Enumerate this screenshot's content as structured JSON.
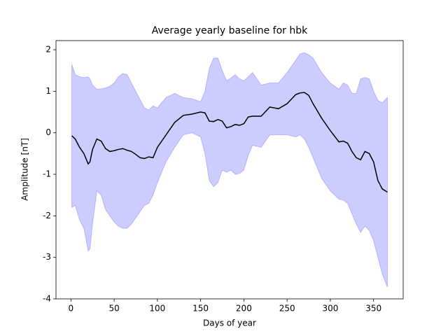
{
  "chart_data": {
    "type": "line_band",
    "title": "Average yearly baseline for hbk",
    "xlabel": "Days of year",
    "ylabel": "Amplitude [nT]",
    "x": [
      1,
      5,
      10,
      15,
      20,
      22,
      25,
      30,
      35,
      40,
      45,
      50,
      55,
      60,
      65,
      70,
      75,
      80,
      85,
      90,
      95,
      100,
      110,
      120,
      130,
      140,
      150,
      155,
      160,
      165,
      170,
      175,
      180,
      185,
      190,
      195,
      200,
      205,
      210,
      220,
      230,
      240,
      250,
      260,
      265,
      270,
      275,
      280,
      290,
      300,
      310,
      315,
      320,
      325,
      330,
      335,
      340,
      345,
      350,
      355,
      360,
      366
    ],
    "values": [
      -0.07,
      -0.15,
      -0.35,
      -0.5,
      -0.75,
      -0.7,
      -0.4,
      -0.15,
      -0.2,
      -0.38,
      -0.45,
      -0.43,
      -0.4,
      -0.38,
      -0.42,
      -0.45,
      -0.52,
      -0.6,
      -0.62,
      -0.58,
      -0.6,
      -0.35,
      -0.05,
      0.25,
      0.42,
      0.45,
      0.5,
      0.48,
      0.28,
      0.27,
      0.32,
      0.28,
      0.12,
      0.15,
      0.2,
      0.18,
      0.22,
      0.38,
      0.4,
      0.4,
      0.62,
      0.58,
      0.7,
      0.92,
      0.96,
      0.97,
      0.9,
      0.7,
      0.35,
      0.05,
      -0.22,
      -0.2,
      -0.25,
      -0.45,
      -0.6,
      -0.65,
      -0.45,
      -0.5,
      -0.7,
      -1.15,
      -1.35,
      -1.43
    ],
    "lower": [
      -1.8,
      -1.75,
      -2.1,
      -2.3,
      -2.85,
      -2.8,
      -2.2,
      -1.4,
      -1.5,
      -1.85,
      -2.0,
      -2.15,
      -2.25,
      -2.3,
      -2.3,
      -2.2,
      -2.05,
      -1.9,
      -1.75,
      -1.7,
      -1.5,
      -1.2,
      -0.7,
      -0.35,
      -0.05,
      0.0,
      -0.1,
      -0.5,
      -1.15,
      -1.3,
      -1.2,
      -0.9,
      -0.95,
      -0.9,
      -1.0,
      -0.98,
      -0.9,
      -0.55,
      -0.3,
      -0.35,
      -0.05,
      -0.05,
      -0.05,
      -0.1,
      -0.05,
      -0.15,
      -0.35,
      -0.6,
      -1.1,
      -1.4,
      -1.6,
      -1.62,
      -1.7,
      -1.95,
      -2.2,
      -2.4,
      -2.25,
      -2.35,
      -2.6,
      -3.0,
      -3.4,
      -3.72
    ],
    "upper": [
      1.65,
      1.4,
      1.35,
      1.33,
      1.35,
      1.3,
      1.15,
      1.05,
      1.06,
      1.08,
      1.12,
      1.2,
      1.35,
      1.43,
      1.4,
      1.2,
      1.0,
      0.8,
      0.6,
      0.55,
      0.65,
      0.6,
      0.85,
      0.95,
      0.85,
      0.82,
      0.75,
      1.0,
      1.55,
      1.8,
      1.8,
      1.5,
      1.25,
      1.32,
      1.4,
      1.3,
      1.25,
      1.35,
      1.45,
      1.15,
      1.2,
      1.2,
      1.45,
      1.75,
      1.9,
      1.93,
      1.88,
      1.8,
      1.45,
      1.2,
      1.05,
      1.2,
      1.15,
      0.95,
      0.95,
      1.3,
      1.33,
      1.3,
      1.0,
      0.78,
      0.72,
      0.85
    ],
    "color": "#000000",
    "band_color": "#0000ff",
    "xlim": [
      -17.25,
      384.25
    ],
    "xticks": [
      0,
      50,
      100,
      150,
      200,
      250,
      300,
      350
    ],
    "ylim": [
      -4.0,
      2.22
    ],
    "yticks": [
      -4,
      -3,
      -2,
      -1,
      0,
      1,
      2
    ]
  }
}
